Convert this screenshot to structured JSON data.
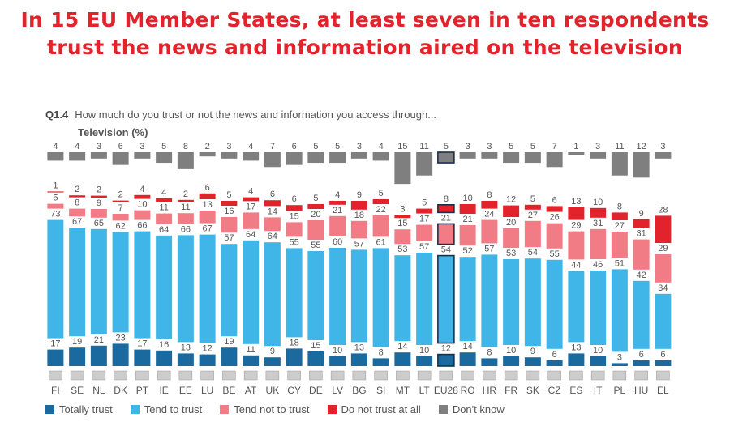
{
  "headline": {
    "line1": "In 15 EU Member States, at least seven in ten respondents",
    "line2": "trust the news and information aired on the television"
  },
  "question": {
    "code": "Q1.4",
    "text": "How much do you trust or not the news and information you access through...",
    "subtitle": "Television (%)"
  },
  "colors": {
    "totally_trust": "#1a6aa0",
    "tend_to_trust": "#40b6e8",
    "tend_not_to_trust": "#f27c85",
    "do_not_trust_at_all": "#e3232b",
    "dont_know": "#7f7f7f"
  },
  "chart_data": {
    "type": "bar",
    "stacked": true,
    "highlight": "EU28",
    "categories": [
      "FI",
      "SE",
      "NL",
      "DK",
      "PT",
      "IE",
      "EE",
      "LU",
      "BE",
      "AT",
      "UK",
      "CY",
      "DE",
      "LV",
      "BG",
      "SI",
      "MT",
      "LT",
      "EU28",
      "RO",
      "HR",
      "FR",
      "SK",
      "CZ",
      "ES",
      "IT",
      "PL",
      "HU",
      "EL"
    ],
    "flags": [
      "fi",
      "se",
      "nl",
      "dk",
      "pt",
      "ie",
      "ee",
      "lu",
      "be",
      "at",
      "uk",
      "cy",
      "de",
      "lv",
      "bg",
      "si",
      "mt",
      "lt",
      "eu",
      "ro",
      "hr",
      "fr",
      "sk",
      "cz",
      "es",
      "it",
      "pl",
      "hu",
      "el"
    ],
    "series": [
      {
        "name": "Totally trust",
        "key": "totally_trust",
        "values": [
          17,
          19,
          21,
          23,
          17,
          16,
          13,
          12,
          19,
          11,
          9,
          18,
          15,
          10,
          13,
          8,
          14,
          10,
          12,
          14,
          8,
          10,
          9,
          6,
          13,
          10,
          3,
          6,
          6
        ]
      },
      {
        "name": "Tend to trust",
        "key": "tend_to_trust",
        "values": [
          73,
          67,
          65,
          62,
          66,
          64,
          66,
          67,
          57,
          64,
          64,
          55,
          55,
          60,
          57,
          61,
          53,
          57,
          54,
          52,
          57,
          53,
          54,
          55,
          44,
          46,
          51,
          42,
          34
        ]
      },
      {
        "name": "Tend not to trust",
        "key": "tend_not_to_trust",
        "values": [
          5,
          8,
          9,
          7,
          10,
          11,
          11,
          13,
          16,
          17,
          14,
          15,
          20,
          21,
          18,
          22,
          15,
          17,
          21,
          21,
          24,
          20,
          27,
          26,
          29,
          31,
          27,
          31,
          29
        ]
      },
      {
        "name": "Do not trust at all",
        "key": "do_not_trust_at_all",
        "values": [
          1,
          2,
          2,
          2,
          4,
          4,
          2,
          6,
          5,
          4,
          6,
          6,
          5,
          4,
          9,
          5,
          3,
          5,
          8,
          10,
          8,
          12,
          5,
          6,
          13,
          10,
          8,
          9,
          28
        ]
      },
      {
        "name": "Don't know",
        "key": "dont_know",
        "values": [
          4,
          4,
          3,
          6,
          3,
          5,
          8,
          2,
          3,
          4,
          7,
          6,
          5,
          5,
          3,
          4,
          15,
          11,
          5,
          3,
          3,
          5,
          5,
          7,
          1,
          3,
          11,
          12,
          3
        ]
      }
    ]
  }
}
